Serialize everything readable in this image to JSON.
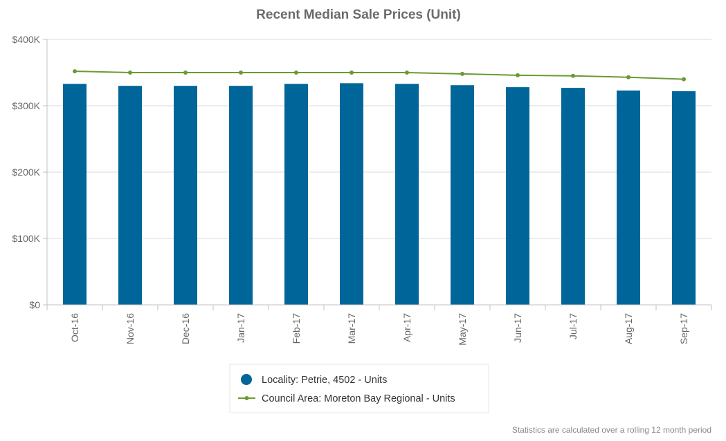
{
  "chart_data": {
    "type": "bar",
    "title": "Recent Median Sale Prices (Unit)",
    "categories": [
      "Oct-16",
      "Nov-16",
      "Dec-16",
      "Jan-17",
      "Feb-17",
      "Mar-17",
      "Apr-17",
      "May-17",
      "Jun-17",
      "Jul-17",
      "Aug-17",
      "Sep-17"
    ],
    "ylim": [
      0,
      400000
    ],
    "yticks": [
      0,
      100000,
      200000,
      300000,
      400000
    ],
    "ytick_labels": [
      "$0",
      "$100K",
      "$200K",
      "$300K",
      "$400K"
    ],
    "grid": true,
    "legend_position": "bottom-center",
    "series": [
      {
        "name": "Locality: Petrie, 4502 - Units",
        "type": "bar",
        "color": "#006699",
        "values": [
          333000,
          330000,
          330000,
          330000,
          333000,
          334000,
          333000,
          331000,
          328000,
          327000,
          323000,
          322000
        ]
      },
      {
        "name": "Council Area: Moreton Bay Regional - Units",
        "type": "line",
        "color": "#6a9a33",
        "values": [
          352000,
          350000,
          350000,
          350000,
          350000,
          350000,
          350000,
          348000,
          346000,
          345000,
          343000,
          340000
        ]
      }
    ],
    "footnote": "Statistics are calculated over a rolling 12 month period"
  }
}
